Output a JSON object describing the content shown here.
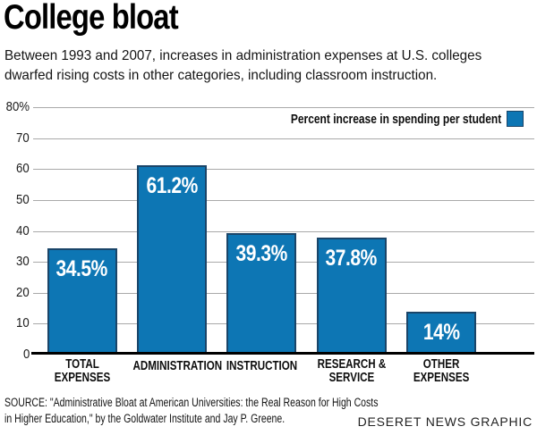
{
  "header": {
    "title": "College bloat",
    "subtitle": "Between 1993 and 2007, increases in administration expenses at U.S. colleges\ndwarfed rising costs in other categories, including classroom instruction."
  },
  "chart_data": {
    "type": "bar",
    "title": "College bloat",
    "subtitle": "Between 1993 and 2007, increases in administration expenses at U.S. colleges dwarfed rising costs in other categories, including classroom instruction.",
    "legend": "Percent increase in spending per student",
    "legend_position": "top-right",
    "categories": [
      "TOTAL EXPENSES",
      "ADMINISTRATION",
      "INSTRUCTION",
      "RESEARCH & SERVICE",
      "OTHER EXPENSES"
    ],
    "category_label_lines": [
      [
        "TOTAL EXPENSES"
      ],
      [
        "ADMINISTRATION"
      ],
      [
        "INSTRUCTION"
      ],
      [
        "RESEARCH &",
        "SERVICE"
      ],
      [
        "OTHER",
        "EXPENSES"
      ]
    ],
    "values": [
      34.5,
      61.2,
      39.3,
      37.8,
      14
    ],
    "value_labels": [
      "34.5%",
      "61.2%",
      "39.3%",
      "37.8%",
      "14%"
    ],
    "xlabel": "",
    "ylabel": "",
    "ylim": [
      0,
      80
    ],
    "ytick_interval": 10,
    "ytick_labels_top_to_bottom": [
      "80%",
      "70",
      "60",
      "50",
      "40",
      "30",
      "20",
      "10",
      "0"
    ],
    "grid": true,
    "gridline_color": "#a9a9a9",
    "bar_color": "#0d76b4",
    "bar_border_color": "#1a4569",
    "value_label_color": "#ffffff",
    "baseline_color": "#000000"
  },
  "footer": {
    "source": "SOURCE: \"Administrative Bloat at American Universities: the Real Reason for High Costs\nin Higher Education,\" by the Goldwater Institute and Jay P. Greene.",
    "credit": "DESERET NEWS GRAPHIC"
  }
}
